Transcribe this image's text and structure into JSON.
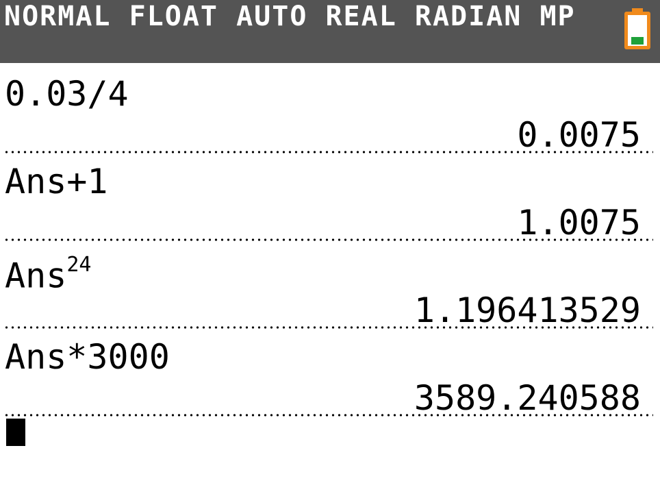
{
  "status_bar": {
    "modes": "NORMAL FLOAT AUTO REAL RADIAN MP",
    "battery_icon": "battery-icon",
    "battery_color": "#f08a1c",
    "battery_level_color": "#1fa13a",
    "background": "#545454"
  },
  "history": [
    {
      "expression": "0.03/4",
      "result": "0.0075"
    },
    {
      "expression": "Ans+1",
      "result": "1.0075"
    },
    {
      "expression_base": "Ans",
      "exponent": "24",
      "result": "1.196413529"
    },
    {
      "expression": "Ans*3000",
      "result": "3589.240588"
    }
  ],
  "cursor_icon": "block-cursor-icon"
}
